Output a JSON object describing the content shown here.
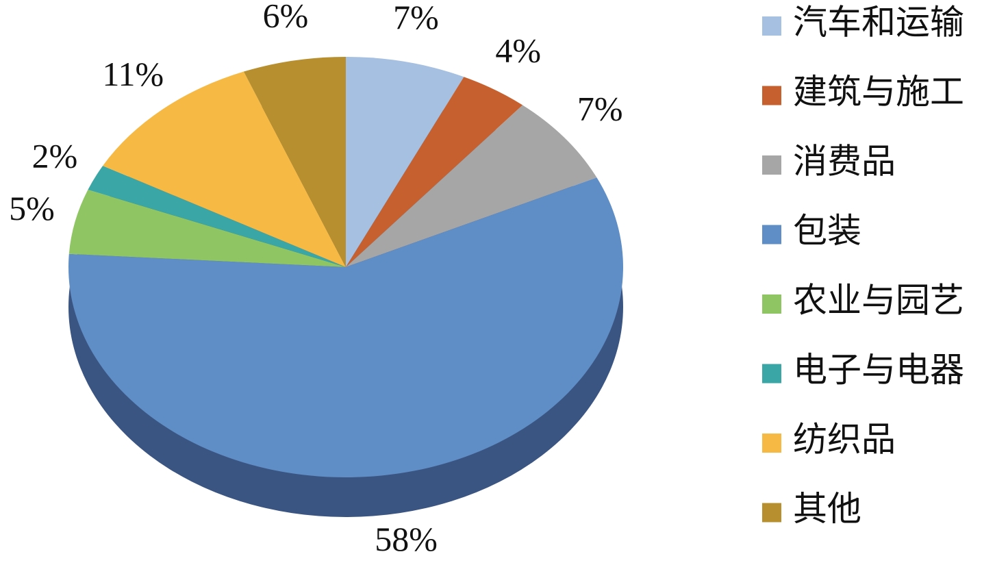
{
  "chart_data": {
    "type": "pie",
    "categories": [
      "汽车和运输",
      "建筑与施工",
      "消费品",
      "包装",
      "农业与园艺",
      "电子与电器",
      "纺织品",
      "其他"
    ],
    "values": [
      7,
      4,
      7,
      58,
      5,
      2,
      11,
      6
    ],
    "value_labels": [
      "7%",
      "4%",
      "7%",
      "58%",
      "5%",
      "2%",
      "11%",
      "6%"
    ],
    "colors": [
      "#a6c0e2",
      "#c6612f",
      "#a7a6a6",
      "#5f8ec6",
      "#8fc663",
      "#3aa6a6",
      "#f6b944",
      "#b88f2f"
    ],
    "legend": "right"
  }
}
